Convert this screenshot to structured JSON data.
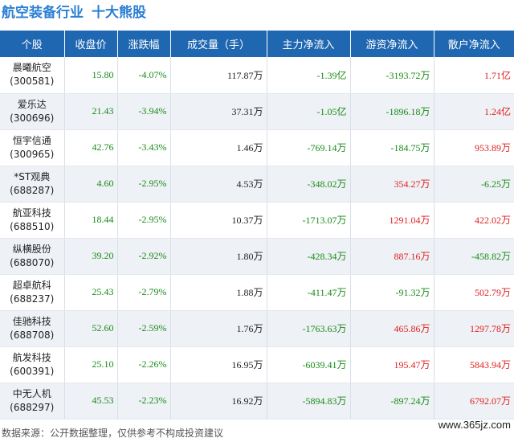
{
  "title": "航空装备行业",
  "subtitle": "十大熊股",
  "columns": [
    "个股",
    "收盘价",
    "涨跌幅",
    "成交量（手）",
    "主力净流入",
    "游资净流入",
    "散户净流入"
  ],
  "rows": [
    {
      "name": "晨曦航空",
      "code": "(300581)",
      "close": "15.80",
      "change": "-4.07%",
      "volume": "117.87万",
      "main": "-1.39亿",
      "hot": "-3193.72万",
      "retail": "1.71亿"
    },
    {
      "name": "爱乐达",
      "code": "(300696)",
      "close": "21.43",
      "change": "-3.94%",
      "volume": "37.31万",
      "main": "-1.05亿",
      "hot": "-1896.18万",
      "retail": "1.24亿"
    },
    {
      "name": "恒宇信通",
      "code": "(300965)",
      "close": "42.76",
      "change": "-3.43%",
      "volume": "1.46万",
      "main": "-769.14万",
      "hot": "-184.75万",
      "retail": "953.89万"
    },
    {
      "name": "*ST观典",
      "code": "(688287)",
      "close": "4.60",
      "change": "-2.95%",
      "volume": "4.53万",
      "main": "-348.02万",
      "hot": "354.27万",
      "retail": "-6.25万"
    },
    {
      "name": "航亚科技",
      "code": "(688510)",
      "close": "18.44",
      "change": "-2.95%",
      "volume": "10.37万",
      "main": "-1713.07万",
      "hot": "1291.04万",
      "retail": "422.02万"
    },
    {
      "name": "纵横股份",
      "code": "(688070)",
      "close": "39.20",
      "change": "-2.92%",
      "volume": "1.80万",
      "main": "-428.34万",
      "hot": "887.16万",
      "retail": "-458.82万"
    },
    {
      "name": "超卓航科",
      "code": "(688237)",
      "close": "25.43",
      "change": "-2.79%",
      "volume": "1.88万",
      "main": "-411.47万",
      "hot": "-91.32万",
      "retail": "502.79万"
    },
    {
      "name": "佳驰科技",
      "code": "(688708)",
      "close": "52.60",
      "change": "-2.59%",
      "volume": "1.76万",
      "main": "-1763.63万",
      "hot": "465.86万",
      "retail": "1297.78万"
    },
    {
      "name": "航发科技",
      "code": "(600391)",
      "close": "25.10",
      "change": "-2.26%",
      "volume": "16.95万",
      "main": "-6039.41万",
      "hot": "195.47万",
      "retail": "5843.94万"
    },
    {
      "name": "中无人机",
      "code": "(688297)",
      "close": "45.53",
      "change": "-2.23%",
      "volume": "16.92万",
      "main": "-5894.83万",
      "hot": "-897.24万",
      "retail": "6792.07万"
    }
  ],
  "footer": "数据来源：公开数据整理，仅供参考不构成投资建议",
  "site": "www.365jz.com",
  "colors": {
    "header_bg": "#1f67b1",
    "title": "#2b7fd3",
    "up": "#e02020",
    "down": "#1a8a1a"
  }
}
